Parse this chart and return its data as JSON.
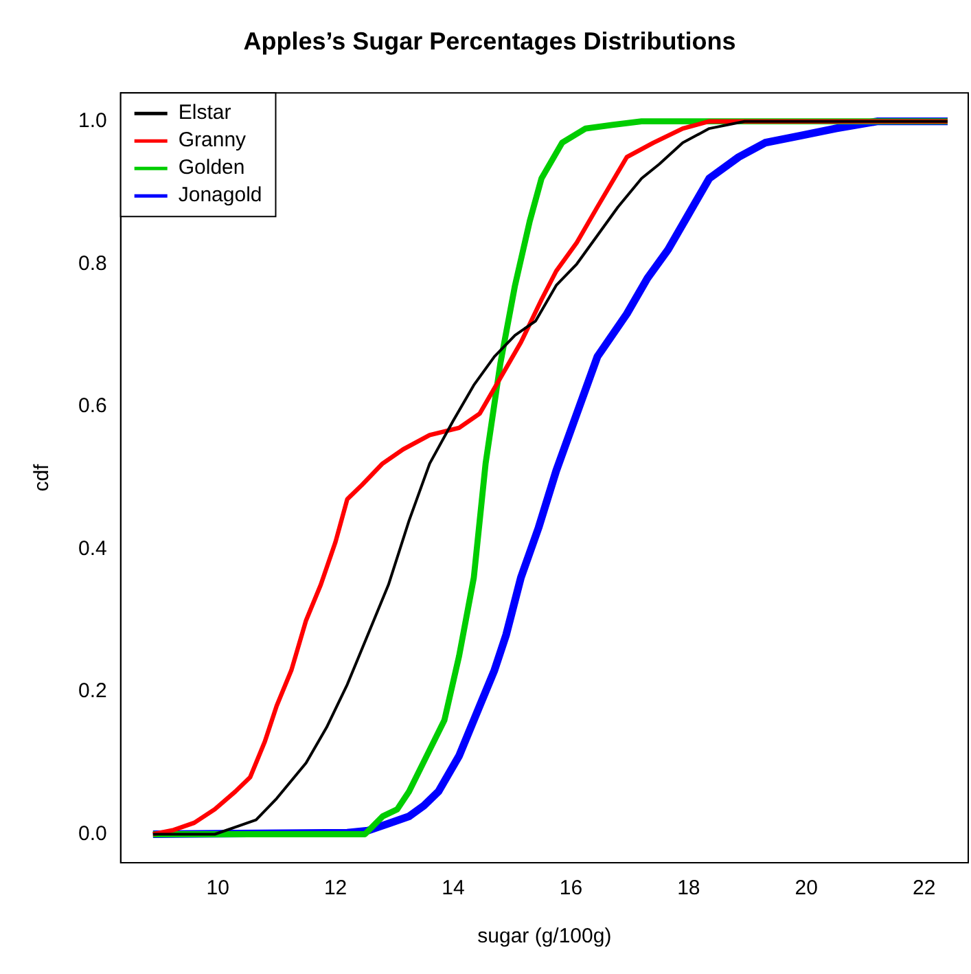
{
  "chart_data": {
    "type": "line",
    "title": "Apples’s Sugar Percentages Distributions",
    "xlabel": "sugar (g/100g)",
    "ylabel": "cdf",
    "xlim": [
      8.35,
      22.75
    ],
    "xticks": [
      10,
      12,
      14,
      16,
      18,
      20,
      22
    ],
    "ylim": [
      -0.04,
      1.04
    ],
    "yticks": [
      {
        "value": 0,
        "label": "0.0"
      },
      {
        "value": 0.2,
        "label": "0.2"
      },
      {
        "value": 0.4,
        "label": "0.4"
      },
      {
        "value": 0.6,
        "label": "0.6"
      },
      {
        "value": 0.8,
        "label": "0.8"
      },
      {
        "value": 1,
        "label": "1.0"
      }
    ],
    "grid": false,
    "legend": "top left",
    "marker": "none",
    "line_style": "solid",
    "series": [
      {
        "name": "Elstar",
        "color": "#000000",
        "x": [
          8.9,
          9.95,
          10.3,
          10.65,
          11.0,
          11.5,
          11.85,
          12.2,
          12.55,
          12.9,
          13.25,
          13.6,
          14.0,
          14.35,
          14.7,
          15.05,
          15.4,
          15.75,
          16.1,
          16.45,
          16.8,
          17.2,
          17.5,
          17.9,
          18.35,
          18.95,
          19.5,
          22.4
        ],
        "values": [
          0,
          0,
          0.01,
          0.02,
          0.05,
          0.1,
          0.15,
          0.21,
          0.28,
          0.35,
          0.44,
          0.52,
          0.58,
          0.63,
          0.67,
          0.7,
          0.72,
          0.77,
          0.8,
          0.84,
          0.88,
          0.92,
          0.94,
          0.97,
          0.99,
          1,
          1,
          1
        ]
      },
      {
        "name": "Granny",
        "color": "#ff0000",
        "x": [
          8.9,
          9.25,
          9.6,
          9.95,
          10.3,
          10.55,
          10.8,
          11.0,
          11.25,
          11.5,
          11.75,
          12.0,
          12.2,
          12.45,
          12.8,
          13.15,
          13.6,
          14.1,
          14.45,
          14.8,
          15.15,
          15.5,
          15.75,
          16.1,
          16.45,
          16.95,
          17.4,
          17.9,
          18.35,
          22.4
        ],
        "values": [
          0,
          0.006,
          0.016,
          0.035,
          0.06,
          0.08,
          0.13,
          0.18,
          0.23,
          0.3,
          0.35,
          0.41,
          0.47,
          0.49,
          0.52,
          0.54,
          0.56,
          0.57,
          0.59,
          0.64,
          0.69,
          0.75,
          0.79,
          0.83,
          0.88,
          0.95,
          0.97,
          0.99,
          1,
          1
        ]
      },
      {
        "name": "Golden",
        "color": "#00cd00",
        "x": [
          8.9,
          12.5,
          12.8,
          13.05,
          13.25,
          13.55,
          13.85,
          14.1,
          14.35,
          14.55,
          14.8,
          15.05,
          15.3,
          15.5,
          15.85,
          16.25,
          16.7,
          17.2,
          22.4
        ],
        "values": [
          0,
          0,
          0.025,
          0.035,
          0.06,
          0.11,
          0.16,
          0.25,
          0.36,
          0.52,
          0.66,
          0.77,
          0.86,
          0.92,
          0.97,
          0.99,
          0.995,
          1,
          1
        ]
      },
      {
        "name": "Jonagold",
        "color": "#0000ff",
        "x": [
          8.9,
          12.2,
          12.55,
          12.9,
          13.25,
          13.5,
          13.75,
          14.1,
          14.45,
          14.7,
          14.9,
          15.15,
          15.45,
          15.75,
          16.1,
          16.45,
          16.95,
          17.3,
          17.65,
          18.0,
          18.35,
          18.85,
          19.3,
          19.9,
          20.5,
          21.2,
          22.4
        ],
        "values": [
          0,
          0.002,
          0.005,
          0.015,
          0.025,
          0.04,
          0.06,
          0.11,
          0.18,
          0.23,
          0.28,
          0.36,
          0.43,
          0.51,
          0.59,
          0.67,
          0.73,
          0.78,
          0.82,
          0.87,
          0.92,
          0.95,
          0.97,
          0.98,
          0.99,
          1,
          1
        ]
      }
    ]
  }
}
